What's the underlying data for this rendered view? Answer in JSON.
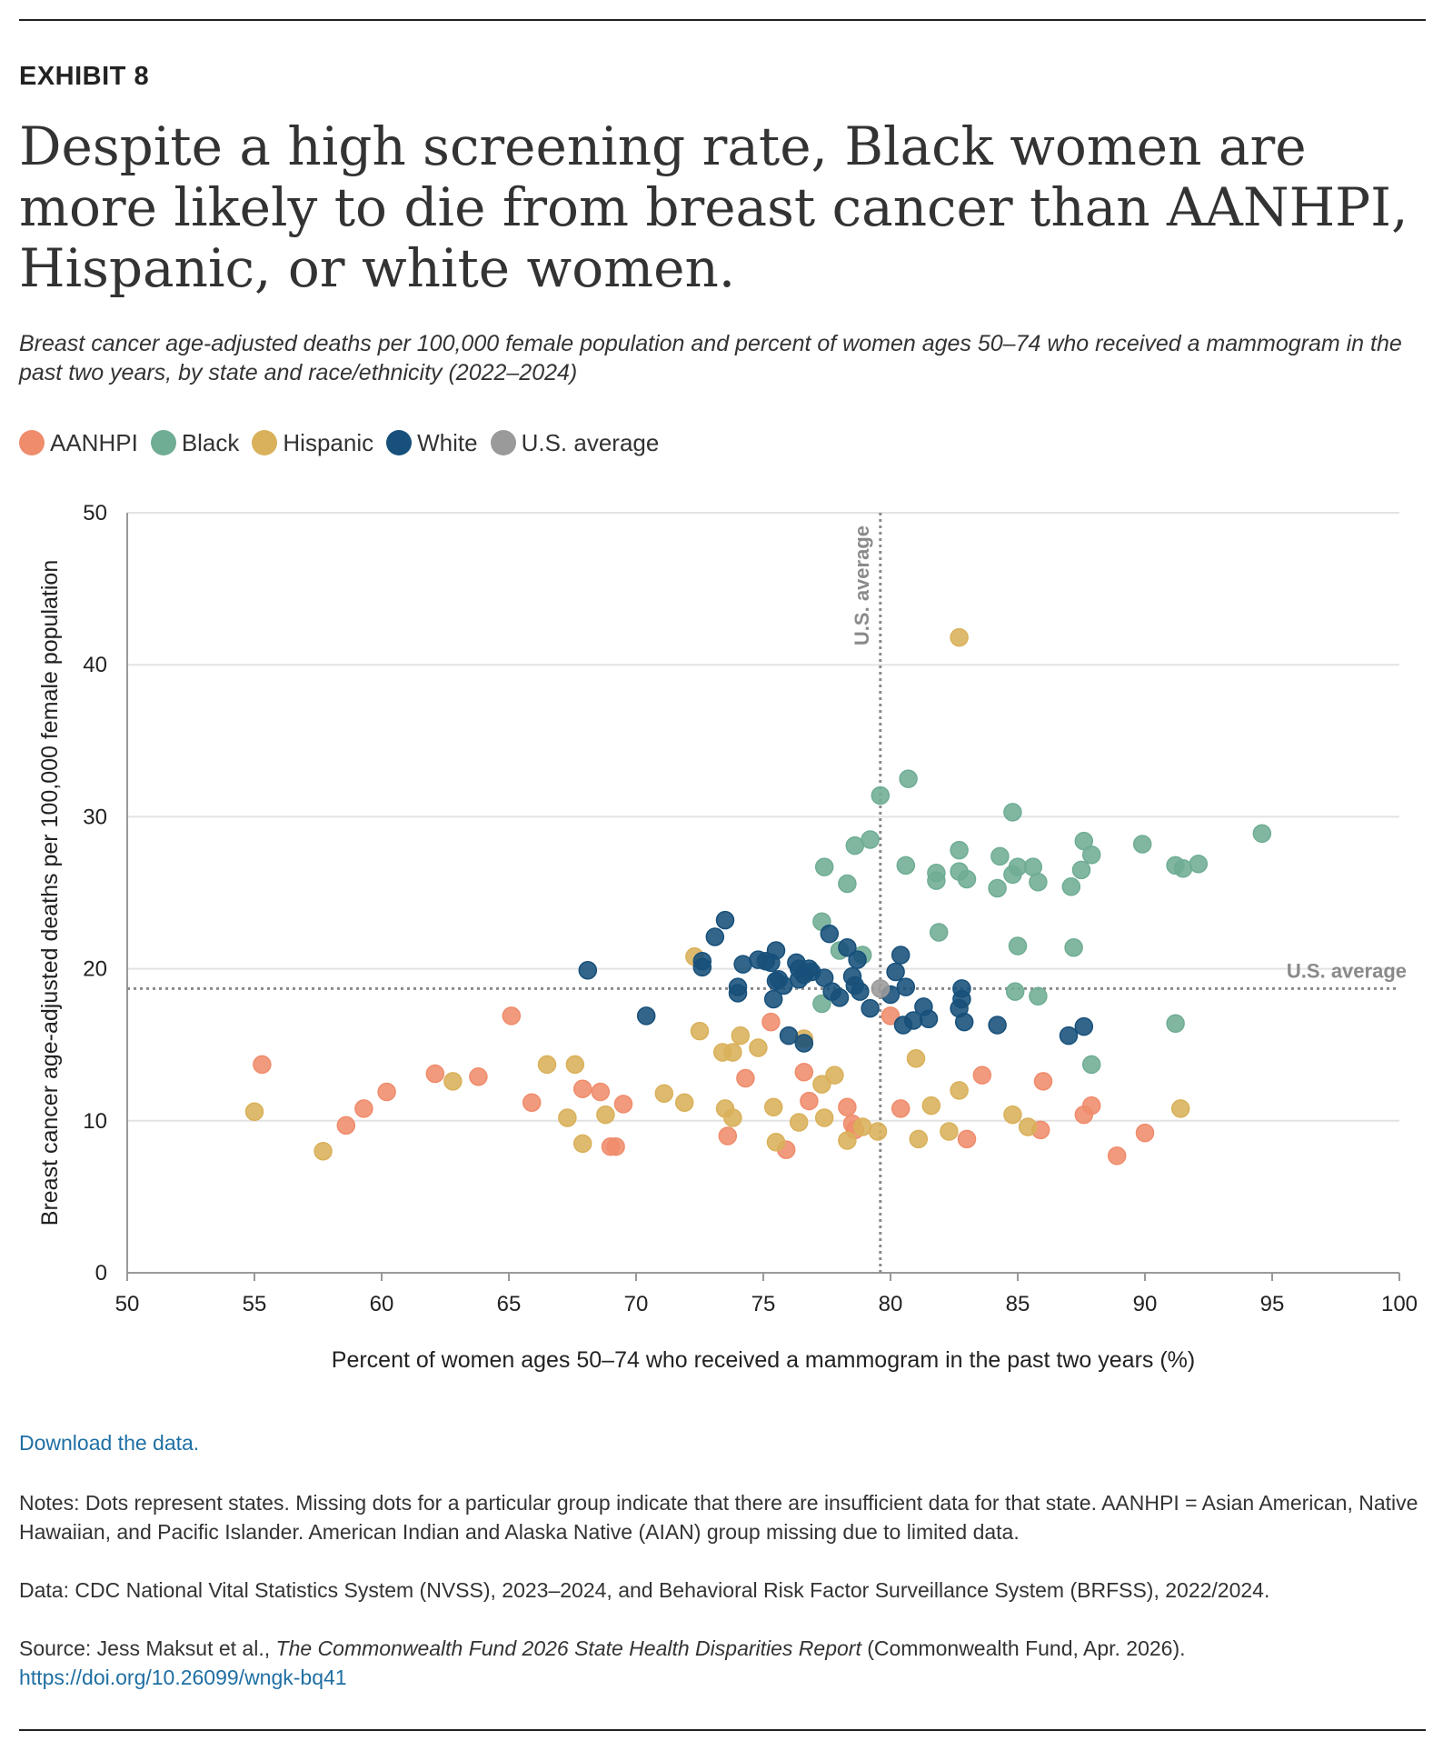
{
  "exhibit_label": "EXHIBIT 8",
  "title": "Despite a high screening rate, Black women are more likely to die from breast cancer than AANHPI, Hispanic, or white women.",
  "subtitle": "Breast cancer age-adjusted deaths per 100,000 female population and percent of women ages 50–74 who received a mammogram in the past two years, by state and race/ethnicity (2022–2024)",
  "legend": [
    {
      "label": "AANHPI",
      "color": "#ef8c6c"
    },
    {
      "label": "Black",
      "color": "#6fad94"
    },
    {
      "label": "Hispanic",
      "color": "#d9b15a"
    },
    {
      "label": "White",
      "color": "#17507a"
    },
    {
      "label": "U.S. average",
      "color": "#9a9a9a"
    }
  ],
  "download_label": "Download the data.",
  "notes": "Notes: Dots represent states. Missing dots for a particular group indicate that there are insufficient data for that state. AANHPI = Asian American, Native Hawaiian, and Pacific Islander. American Indian and Alaska Native (AIAN) group missing due to limited data.",
  "data_source": "Data: CDC National Vital Statistics System (NVSS), 2023–2024, and Behavioral Risk Factor Surveillance System (BRFSS), 2022/2024.",
  "source_prefix": "Source: Jess Maksut et al., ",
  "source_title": "The Commonwealth Fund 2026 State Health Disparities Report",
  "source_suffix": " (Commonwealth Fund, Apr. 2026).",
  "doi": "https://doi.org/10.26099/wngk-bq41",
  "chart_data": {
    "type": "scatter",
    "xlabel": "Percent of women ages 50–74 who received a mammogram in the past two years (%)",
    "ylabel": "Breast cancer age-adjusted deaths per 100,000 female population",
    "xlim": [
      50,
      100
    ],
    "ylim": [
      0,
      50
    ],
    "x_ticks": [
      50,
      55,
      60,
      65,
      70,
      75,
      80,
      85,
      90,
      95,
      100
    ],
    "y_ticks": [
      0,
      10,
      20,
      30,
      40,
      50
    ],
    "grid": "horizontal",
    "reference_lines": [
      {
        "orientation": "vertical",
        "value": 79.6,
        "label": "U.S. average"
      },
      {
        "orientation": "horizontal",
        "value": 18.7,
        "label": "U.S. average"
      }
    ],
    "series": [
      {
        "name": "AANHPI",
        "color": "#ef8c6c",
        "points": [
          [
            55.3,
            13.7
          ],
          [
            58.6,
            9.7
          ],
          [
            59.3,
            10.8
          ],
          [
            60.2,
            11.9
          ],
          [
            62.1,
            13.1
          ],
          [
            63.8,
            12.9
          ],
          [
            65.1,
            16.9
          ],
          [
            65.9,
            11.2
          ],
          [
            67.9,
            12.1
          ],
          [
            68.6,
            11.9
          ],
          [
            69.0,
            8.3
          ],
          [
            69.2,
            8.3
          ],
          [
            69.5,
            11.1
          ],
          [
            73.6,
            9.0
          ],
          [
            74.3,
            12.8
          ],
          [
            75.3,
            16.5
          ],
          [
            75.9,
            8.1
          ],
          [
            76.6,
            13.2
          ],
          [
            76.8,
            11.3
          ],
          [
            78.3,
            10.9
          ],
          [
            78.5,
            9.8
          ],
          [
            78.6,
            9.4
          ],
          [
            80.0,
            16.9
          ],
          [
            80.4,
            10.8
          ],
          [
            83.0,
            8.8
          ],
          [
            83.6,
            13.0
          ],
          [
            86.0,
            12.6
          ],
          [
            85.9,
            9.4
          ],
          [
            87.6,
            10.4
          ],
          [
            87.9,
            11.0
          ],
          [
            88.9,
            7.7
          ],
          [
            90.0,
            9.2
          ]
        ]
      },
      {
        "name": "Black",
        "color": "#6fad94",
        "points": [
          [
            79.6,
            31.4
          ],
          [
            80.7,
            32.5
          ],
          [
            79.2,
            28.5
          ],
          [
            78.6,
            28.1
          ],
          [
            77.4,
            26.7
          ],
          [
            78.3,
            25.6
          ],
          [
            77.3,
            23.1
          ],
          [
            78.0,
            21.2
          ],
          [
            78.9,
            20.9
          ],
          [
            77.3,
            17.7
          ],
          [
            80.6,
            26.8
          ],
          [
            81.8,
            26.3
          ],
          [
            81.8,
            25.8
          ],
          [
            82.7,
            27.8
          ],
          [
            82.7,
            26.4
          ],
          [
            83.0,
            25.9
          ],
          [
            81.9,
            22.4
          ],
          [
            84.8,
            30.3
          ],
          [
            84.3,
            27.4
          ],
          [
            84.8,
            26.2
          ],
          [
            85.0,
            26.7
          ],
          [
            84.2,
            25.3
          ],
          [
            85.6,
            26.7
          ],
          [
            85.8,
            25.7
          ],
          [
            85.0,
            21.5
          ],
          [
            84.9,
            18.5
          ],
          [
            85.8,
            18.2
          ],
          [
            87.6,
            28.4
          ],
          [
            87.9,
            27.5
          ],
          [
            87.5,
            26.5
          ],
          [
            87.1,
            25.4
          ],
          [
            87.2,
            21.4
          ],
          [
            87.9,
            13.7
          ],
          [
            89.9,
            28.2
          ],
          [
            91.2,
            26.8
          ],
          [
            91.5,
            26.6
          ],
          [
            92.1,
            26.9
          ],
          [
            91.2,
            16.4
          ],
          [
            94.6,
            28.9
          ]
        ]
      },
      {
        "name": "Hispanic",
        "color": "#d9b15a",
        "points": [
          [
            55.0,
            10.6
          ],
          [
            57.7,
            8.0
          ],
          [
            62.8,
            12.6
          ],
          [
            66.5,
            13.7
          ],
          [
            67.3,
            10.2
          ],
          [
            67.6,
            13.7
          ],
          [
            67.9,
            8.5
          ],
          [
            68.8,
            10.4
          ],
          [
            71.1,
            11.8
          ],
          [
            71.9,
            11.2
          ],
          [
            72.3,
            20.8
          ],
          [
            72.5,
            15.9
          ],
          [
            73.4,
            14.5
          ],
          [
            73.8,
            14.5
          ],
          [
            73.5,
            10.8
          ],
          [
            73.8,
            10.2
          ],
          [
            74.1,
            15.6
          ],
          [
            74.8,
            14.8
          ],
          [
            75.4,
            10.9
          ],
          [
            75.5,
            8.6
          ],
          [
            76.4,
            9.9
          ],
          [
            76.6,
            15.4
          ],
          [
            77.3,
            12.4
          ],
          [
            77.8,
            13.0
          ],
          [
            77.4,
            10.2
          ],
          [
            78.3,
            8.7
          ],
          [
            78.9,
            9.6
          ],
          [
            79.5,
            9.3
          ],
          [
            81.0,
            14.1
          ],
          [
            81.1,
            8.8
          ],
          [
            81.6,
            11.0
          ],
          [
            82.3,
            9.3
          ],
          [
            82.7,
            12.0
          ],
          [
            84.8,
            10.4
          ],
          [
            85.4,
            9.6
          ],
          [
            91.4,
            10.8
          ],
          [
            82.7,
            41.8
          ]
        ]
      },
      {
        "name": "White",
        "color": "#17507a",
        "points": [
          [
            68.1,
            19.9
          ],
          [
            70.4,
            16.9
          ],
          [
            72.6,
            20.5
          ],
          [
            72.6,
            20.1
          ],
          [
            73.1,
            22.1
          ],
          [
            73.5,
            23.2
          ],
          [
            74.0,
            18.8
          ],
          [
            74.0,
            18.4
          ],
          [
            74.2,
            20.3
          ],
          [
            74.8,
            20.6
          ],
          [
            75.1,
            20.5
          ],
          [
            75.3,
            20.4
          ],
          [
            75.5,
            21.2
          ],
          [
            75.4,
            18.0
          ],
          [
            75.5,
            19.2
          ],
          [
            75.6,
            19.3
          ],
          [
            75.8,
            18.9
          ],
          [
            76.0,
            15.6
          ],
          [
            76.3,
            20.4
          ],
          [
            76.4,
            20.0
          ],
          [
            76.6,
            19.6
          ],
          [
            76.8,
            20.0
          ],
          [
            76.9,
            19.8
          ],
          [
            76.4,
            19.3
          ],
          [
            76.6,
            15.1
          ],
          [
            77.4,
            19.4
          ],
          [
            77.6,
            22.3
          ],
          [
            77.7,
            18.5
          ],
          [
            78.0,
            18.1
          ],
          [
            78.3,
            21.4
          ],
          [
            78.5,
            19.5
          ],
          [
            78.6,
            18.9
          ],
          [
            78.7,
            20.6
          ],
          [
            78.8,
            18.5
          ],
          [
            79.2,
            17.4
          ],
          [
            80.0,
            18.3
          ],
          [
            80.2,
            19.8
          ],
          [
            80.4,
            20.9
          ],
          [
            80.6,
            18.8
          ],
          [
            80.5,
            16.3
          ],
          [
            80.9,
            16.6
          ],
          [
            81.3,
            17.5
          ],
          [
            81.5,
            16.7
          ],
          [
            82.8,
            18.7
          ],
          [
            82.8,
            18.0
          ],
          [
            82.7,
            17.4
          ],
          [
            82.9,
            16.5
          ],
          [
            84.2,
            16.3
          ],
          [
            87.0,
            15.6
          ],
          [
            87.6,
            16.2
          ]
        ]
      },
      {
        "name": "U.S. average",
        "color": "#9a9a9a",
        "points": [
          [
            79.6,
            18.7
          ]
        ]
      }
    ]
  }
}
